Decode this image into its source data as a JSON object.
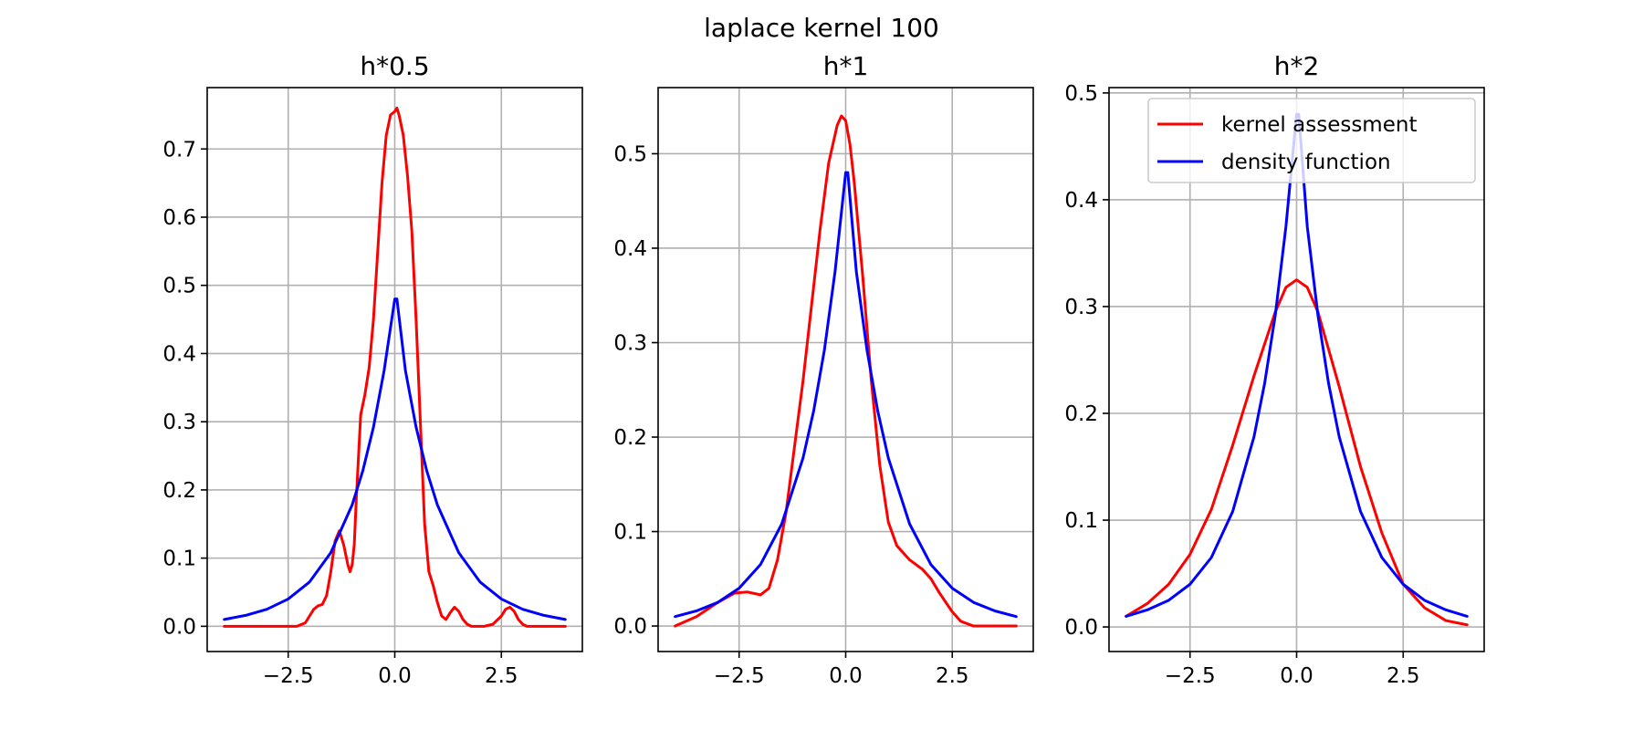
{
  "figure": {
    "suptitle": "laplace kernel 100",
    "legend": {
      "placement": "top-right",
      "entries": [
        {
          "label": "kernel assessment",
          "color": "#ff0000"
        },
        {
          "label": "density function",
          "color": "#0000ff"
        }
      ]
    }
  },
  "chart_data": [
    {
      "type": "line",
      "title": "h*0.5",
      "xlabel": "",
      "ylabel": "",
      "xlim": [
        -4.4,
        4.4
      ],
      "ylim": [
        -0.037,
        0.79
      ],
      "xticks": [
        -2.5,
        0.0,
        2.5
      ],
      "xtick_labels": [
        "−2.5",
        "0.0",
        "2.5"
      ],
      "yticks": [
        0.0,
        0.1,
        0.2,
        0.3,
        0.4,
        0.5,
        0.6,
        0.7
      ],
      "ytick_labels": [
        "0.0",
        "0.1",
        "0.2",
        "0.3",
        "0.4",
        "0.5",
        "0.6",
        "0.7"
      ],
      "grid": true,
      "legend": false,
      "series": [
        {
          "color": "#ff0000",
          "x": [
            -4.0,
            -2.3,
            -2.1,
            -2.0,
            -1.9,
            -1.8,
            -1.7,
            -1.6,
            -1.5,
            -1.4,
            -1.3,
            -1.2,
            -1.1,
            -1.05,
            -1.0,
            -0.95,
            -0.9,
            -0.8,
            -0.7,
            -0.6,
            -0.5,
            -0.4,
            -0.3,
            -0.2,
            -0.1,
            0.0,
            0.05,
            0.1,
            0.2,
            0.3,
            0.4,
            0.5,
            0.6,
            0.7,
            0.8,
            0.9,
            1.0,
            1.1,
            1.2,
            1.3,
            1.4,
            1.5,
            1.6,
            1.7,
            1.8,
            1.9,
            2.0,
            2.1,
            2.3,
            2.5,
            2.6,
            2.7,
            2.8,
            2.9,
            3.0,
            3.1,
            3.2,
            3.4,
            4.0
          ],
          "y": [
            0.0,
            0.0,
            0.005,
            0.015,
            0.025,
            0.03,
            0.032,
            0.045,
            0.08,
            0.125,
            0.14,
            0.12,
            0.09,
            0.08,
            0.09,
            0.12,
            0.19,
            0.31,
            0.34,
            0.38,
            0.45,
            0.55,
            0.65,
            0.72,
            0.75,
            0.755,
            0.76,
            0.75,
            0.72,
            0.66,
            0.58,
            0.45,
            0.3,
            0.15,
            0.08,
            0.06,
            0.035,
            0.015,
            0.01,
            0.02,
            0.028,
            0.022,
            0.01,
            0.003,
            0.0,
            0.0,
            0.0,
            0.0,
            0.003,
            0.015,
            0.025,
            0.028,
            0.022,
            0.01,
            0.003,
            0.0,
            0.0,
            0.0,
            0.0
          ]
        },
        {
          "color": "#0000ff",
          "x": [
            -4.0,
            -3.5,
            -3.0,
            -2.5,
            -2.0,
            -1.5,
            -1.0,
            -0.75,
            -0.5,
            -0.25,
            0.0,
            0.05,
            0.25,
            0.5,
            0.75,
            1.0,
            1.5,
            2.0,
            2.5,
            3.0,
            3.5,
            4.0
          ],
          "y": [
            0.01,
            0.016,
            0.025,
            0.04,
            0.065,
            0.108,
            0.178,
            0.228,
            0.292,
            0.375,
            0.48,
            0.48,
            0.375,
            0.292,
            0.228,
            0.178,
            0.108,
            0.065,
            0.04,
            0.025,
            0.016,
            0.01
          ]
        }
      ]
    },
    {
      "type": "line",
      "title": "h*1",
      "xlabel": "",
      "ylabel": "",
      "xlim": [
        -4.4,
        4.4
      ],
      "ylim": [
        -0.027,
        0.57
      ],
      "xticks": [
        -2.5,
        0.0,
        2.5
      ],
      "xtick_labels": [
        "−2.5",
        "0.0",
        "2.5"
      ],
      "yticks": [
        0.0,
        0.1,
        0.2,
        0.3,
        0.4,
        0.5
      ],
      "ytick_labels": [
        "0.0",
        "0.1",
        "0.2",
        "0.3",
        "0.4",
        "0.5"
      ],
      "grid": true,
      "legend": false,
      "series": [
        {
          "color": "#ff0000",
          "x": [
            -4.0,
            -3.5,
            -3.0,
            -2.6,
            -2.3,
            -2.0,
            -1.8,
            -1.6,
            -1.4,
            -1.2,
            -1.0,
            -0.8,
            -0.6,
            -0.4,
            -0.2,
            -0.1,
            0.0,
            0.1,
            0.2,
            0.4,
            0.6,
            0.8,
            1.0,
            1.2,
            1.5,
            1.8,
            2.0,
            2.2,
            2.5,
            2.7,
            3.0,
            3.5,
            4.0
          ],
          "y": [
            0.0,
            0.01,
            0.025,
            0.035,
            0.036,
            0.033,
            0.04,
            0.07,
            0.12,
            0.19,
            0.26,
            0.34,
            0.42,
            0.49,
            0.53,
            0.54,
            0.535,
            0.51,
            0.47,
            0.37,
            0.26,
            0.17,
            0.11,
            0.085,
            0.07,
            0.06,
            0.05,
            0.035,
            0.015,
            0.005,
            0.0,
            0.0,
            0.0
          ]
        },
        {
          "color": "#0000ff",
          "x": [
            -4.0,
            -3.5,
            -3.0,
            -2.5,
            -2.0,
            -1.5,
            -1.0,
            -0.75,
            -0.5,
            -0.25,
            0.0,
            0.05,
            0.25,
            0.5,
            0.75,
            1.0,
            1.5,
            2.0,
            2.5,
            3.0,
            3.5,
            4.0
          ],
          "y": [
            0.01,
            0.016,
            0.025,
            0.04,
            0.065,
            0.108,
            0.178,
            0.228,
            0.292,
            0.375,
            0.48,
            0.48,
            0.375,
            0.292,
            0.228,
            0.178,
            0.108,
            0.065,
            0.04,
            0.025,
            0.016,
            0.01
          ]
        }
      ]
    },
    {
      "type": "line",
      "title": "h*2",
      "xlabel": "",
      "ylabel": "",
      "xlim": [
        -4.4,
        4.4
      ],
      "ylim": [
        -0.023,
        0.505
      ],
      "xticks": [
        -2.5,
        0.0,
        2.5
      ],
      "xtick_labels": [
        "−2.5",
        "0.0",
        "2.5"
      ],
      "yticks": [
        0.0,
        0.1,
        0.2,
        0.3,
        0.4,
        0.5
      ],
      "ytick_labels": [
        "0.0",
        "0.1",
        "0.2",
        "0.3",
        "0.4",
        "0.5"
      ],
      "grid": true,
      "legend": true,
      "series": [
        {
          "color": "#ff0000",
          "x": [
            -4.0,
            -3.5,
            -3.0,
            -2.5,
            -2.0,
            -1.5,
            -1.0,
            -0.5,
            -0.25,
            0.0,
            0.25,
            0.5,
            1.0,
            1.5,
            2.0,
            2.5,
            3.0,
            3.5,
            4.0
          ],
          "y": [
            0.01,
            0.022,
            0.04,
            0.068,
            0.11,
            0.17,
            0.235,
            0.295,
            0.318,
            0.325,
            0.318,
            0.295,
            0.225,
            0.15,
            0.088,
            0.04,
            0.018,
            0.006,
            0.002
          ]
        },
        {
          "color": "#0000ff",
          "x": [
            -4.0,
            -3.5,
            -3.0,
            -2.5,
            -2.0,
            -1.5,
            -1.0,
            -0.75,
            -0.5,
            -0.25,
            0.0,
            0.05,
            0.25,
            0.5,
            0.75,
            1.0,
            1.5,
            2.0,
            2.5,
            3.0,
            3.5,
            4.0
          ],
          "y": [
            0.01,
            0.016,
            0.025,
            0.04,
            0.065,
            0.108,
            0.178,
            0.228,
            0.292,
            0.375,
            0.48,
            0.48,
            0.375,
            0.292,
            0.228,
            0.178,
            0.108,
            0.065,
            0.04,
            0.025,
            0.016,
            0.01
          ]
        }
      ]
    }
  ]
}
